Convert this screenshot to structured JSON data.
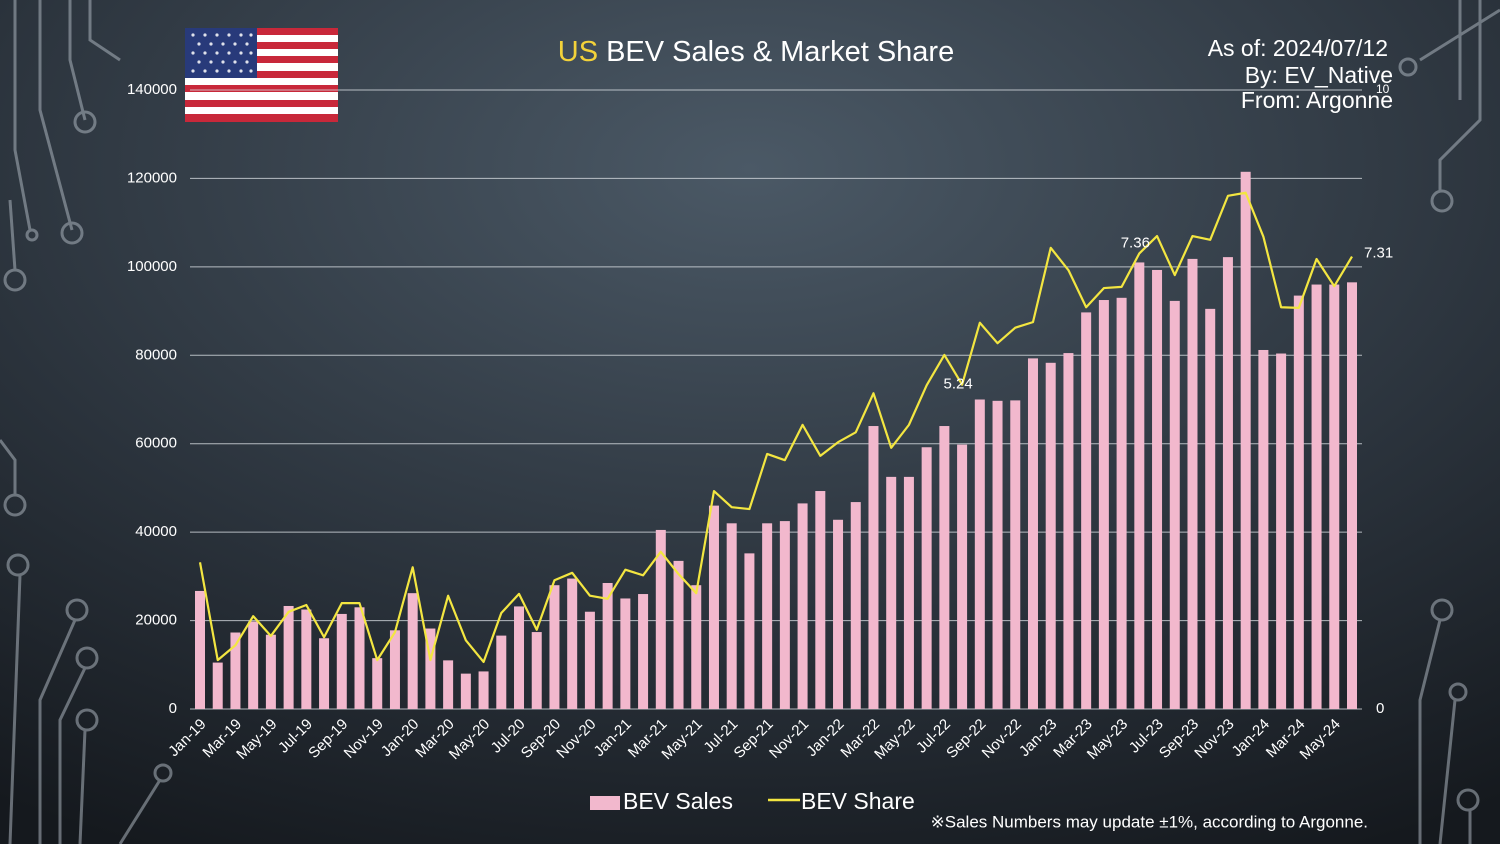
{
  "chart_data": {
    "type": "bar",
    "title_prefix": "US",
    "title": "BEV Sales & Market Share",
    "annotations": [
      "As of: 2024/07/12",
      "By: EV_Native",
      "From: Argonne"
    ],
    "footnote": "※Sales Numbers may update ±1%, according to Argonne.",
    "categories": [
      "Jan-19",
      null,
      "Mar-19",
      null,
      "May-19",
      null,
      "Jul-19",
      null,
      "Sep-19",
      null,
      "Nov-19",
      null,
      "Jan-20",
      null,
      "Mar-20",
      null,
      "May-20",
      null,
      "Jul-20",
      null,
      "Sep-20",
      null,
      "Nov-20",
      null,
      "Jan-21",
      null,
      "Mar-21",
      null,
      "May-21",
      null,
      "Jul-21",
      null,
      "Sep-21",
      null,
      "Nov-21",
      null,
      "Jan-22",
      null,
      "Mar-22",
      null,
      "May-22",
      null,
      "Jul-22",
      null,
      "Sep-22",
      null,
      "Nov-22",
      null,
      "Jan-23",
      null,
      "Mar-23",
      null,
      "May-23",
      null,
      "Jul-23",
      null,
      "Sep-23",
      null,
      "Nov-23",
      null,
      "Jan-24",
      null,
      "Mar-24",
      null,
      "May-24",
      null
    ],
    "series": [
      {
        "name": "BEV Sales",
        "type": "bar",
        "color": "#f2b8cd",
        "values": [
          26700,
          10500,
          17300,
          19800,
          16800,
          23300,
          22500,
          16000,
          21500,
          23000,
          11500,
          17800,
          26200,
          18200,
          11000,
          8000,
          8500,
          16600,
          23200,
          17400,
          28000,
          29500,
          22000,
          28500,
          25000,
          26000,
          40500,
          33500,
          28000,
          46000,
          42000,
          35200,
          42000,
          42500,
          46500,
          49300,
          42800,
          46800,
          64000,
          52500,
          52500,
          59200,
          64000,
          59800,
          70000,
          69700,
          69800,
          79300,
          78300,
          80500,
          89700,
          92500,
          93000,
          101000,
          99300,
          92300,
          101800,
          90500,
          102200,
          121500,
          81200,
          80400,
          93500,
          96000,
          96000,
          96500
        ]
      },
      {
        "name": "BEV Share",
        "type": "line",
        "axis": "y2",
        "color": "#f3e641",
        "values": [
          2.37,
          0.79,
          1.03,
          1.5,
          1.18,
          1.57,
          1.68,
          1.16,
          1.71,
          1.71,
          0.79,
          1.24,
          2.29,
          0.79,
          1.83,
          1.11,
          0.76,
          1.55,
          1.86,
          1.28,
          2.08,
          2.2,
          1.83,
          1.78,
          2.25,
          2.16,
          2.54,
          2.18,
          1.87,
          3.52,
          3.26,
          3.23,
          4.12,
          4.02,
          4.59,
          4.09,
          4.31,
          4.47,
          5.1,
          4.22,
          4.59,
          5.23,
          5.72,
          5.24,
          6.24,
          5.91,
          6.16,
          6.25,
          7.45,
          7.09,
          6.49,
          6.8,
          6.82,
          7.36,
          7.64,
          7.01,
          7.64,
          7.58,
          8.29,
          8.34,
          7.63,
          6.49,
          6.48,
          7.27,
          6.83,
          7.31
        ],
        "labeled_points": [
          43,
          53,
          65
        ]
      }
    ],
    "ylim": [
      0,
      140000
    ],
    "yticks": [
      0,
      20000,
      40000,
      60000,
      80000,
      100000,
      120000,
      140000
    ],
    "y2lim": [
      0,
      10
    ],
    "y2ticks": [
      0,
      10
    ],
    "grid": true
  }
}
